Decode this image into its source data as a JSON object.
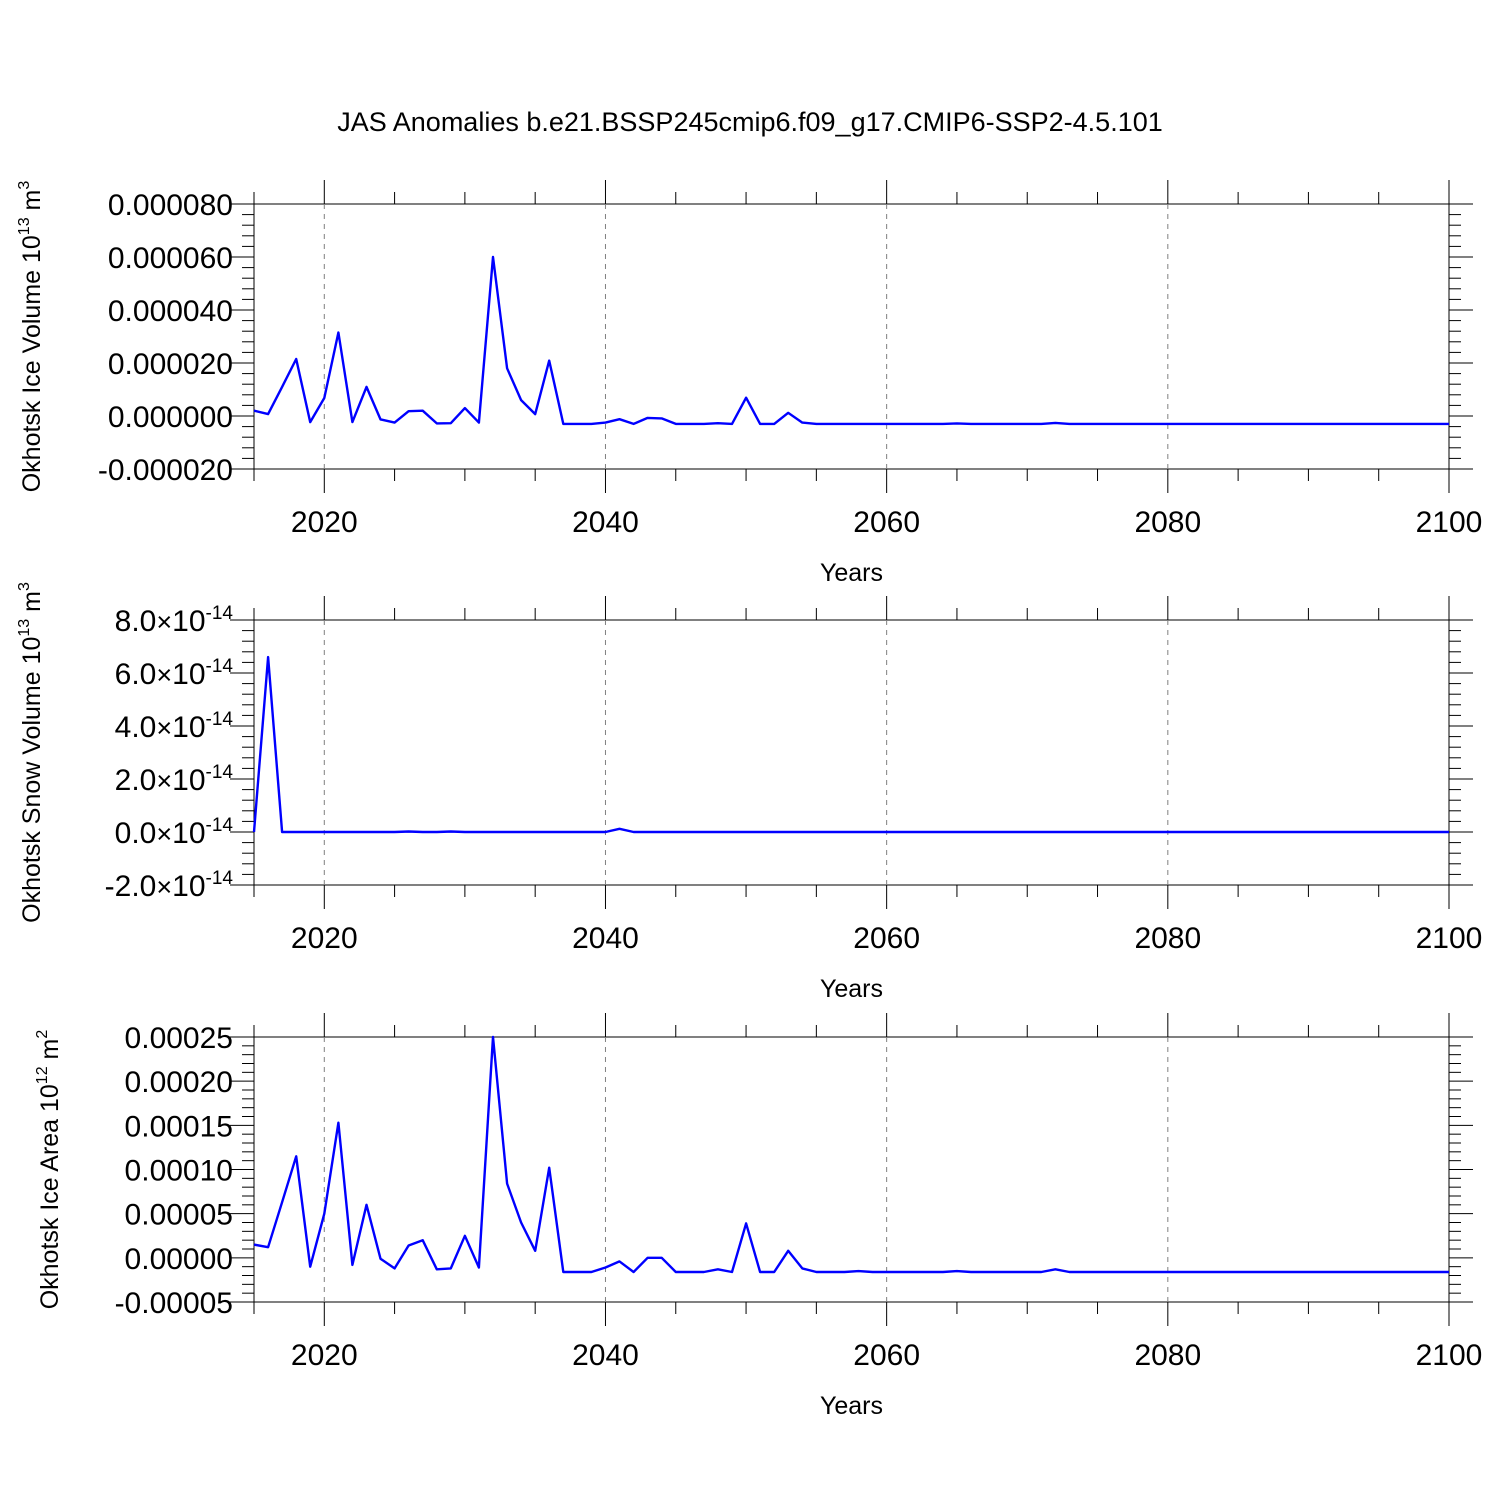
{
  "title": "JAS Anomalies b.e21.BSSP245cmip6.f09_g17.CMIP6-SSP2-4.5.101",
  "line_color": "#0000ff",
  "chart_data": [
    {
      "type": "line",
      "xlabel": "Years",
      "ylabel": "Okhotsk Ice Volume 10",
      "ylabel_exp": "13",
      "ylabel_unit": "m",
      "ylabel_unit_exp": "3",
      "xlim": [
        2015,
        2100
      ],
      "ylim": [
        -2e-05,
        8e-05
      ],
      "x_ticks": [
        "2020",
        "2040",
        "2060",
        "2080",
        "2100"
      ],
      "y_ticks": [
        "-0.000020",
        "0.000000",
        "0.000020",
        "0.000040",
        "0.000060",
        "0.000080"
      ],
      "grid": "dashed vertical at major x ticks",
      "x_start": 2015,
      "values": [
        2e-06,
        7e-07,
        1.1e-05,
        2.15e-05,
        -2.3e-06,
        6.8e-06,
        3.15e-05,
        -2.3e-06,
        1.1e-05,
        -1.3e-06,
        -2.5e-06,
        1.8e-06,
        2e-06,
        -2.8e-06,
        -2.7e-06,
        3e-06,
        -2.5e-06,
        6e-05,
        1.8e-05,
        6e-06,
        7e-07,
        2.09e-05,
        -3e-06,
        -3e-06,
        -3e-06,
        -2.5e-06,
        -1.2e-06,
        -3e-06,
        -7e-07,
        -9e-07,
        -3e-06,
        -3e-06,
        -3e-06,
        -2.7e-06,
        -3e-06,
        6.9e-06,
        -3e-06,
        -3e-06,
        1.2e-06,
        -2.5e-06,
        -3e-06,
        -3e-06,
        -3e-06,
        -3e-06,
        -3e-06,
        -3e-06,
        -3e-06,
        -3e-06,
        -3e-06,
        -3e-06,
        -2.8e-06,
        -3e-06,
        -3e-06,
        -3e-06,
        -3e-06,
        -3e-06,
        -3e-06,
        -2.6e-06,
        -3e-06,
        -3e-06,
        -3e-06,
        -3e-06,
        -3e-06,
        -3e-06,
        -3e-06,
        -3e-06,
        -3e-06,
        -3e-06,
        -3e-06,
        -3e-06,
        -3e-06,
        -3e-06,
        -3e-06,
        -3e-06,
        -3e-06,
        -3e-06,
        -3e-06,
        -3e-06,
        -3e-06,
        -3e-06,
        -3e-06,
        -3e-06,
        -3e-06,
        -3e-06,
        -3e-06,
        -3e-06
      ]
    },
    {
      "type": "line",
      "xlabel": "Years",
      "ylabel": "Okhotsk Snow Volume 10",
      "ylabel_exp": "13",
      "ylabel_unit": "m",
      "ylabel_unit_exp": "3",
      "xlim": [
        2015,
        2100
      ],
      "ylim": [
        -2e-14,
        8e-14
      ],
      "x_ticks": [
        "2020",
        "2040",
        "2060",
        "2080",
        "2100"
      ],
      "y_ticks": [
        {
          "mantissa": "-2.0",
          "times": "×",
          "base": "10",
          "exp": "-14"
        },
        {
          "mantissa": "0.0",
          "times": "×",
          "base": "10",
          "exp": "-14"
        },
        {
          "mantissa": "2.0",
          "times": "×",
          "base": "10",
          "exp": "-14"
        },
        {
          "mantissa": "4.0",
          "times": "×",
          "base": "10",
          "exp": "-14"
        },
        {
          "mantissa": "6.0",
          "times": "×",
          "base": "10",
          "exp": "-14"
        },
        {
          "mantissa": "8.0",
          "times": "×",
          "base": "10",
          "exp": "-14"
        }
      ],
      "grid": "dashed vertical at major x ticks",
      "x_start": 2015,
      "values": [
        0,
        6.6e-14,
        0,
        0,
        0,
        0,
        0,
        0,
        0,
        0,
        0,
        2e-16,
        0,
        0,
        2e-16,
        0,
        0,
        0,
        0,
        0,
        0,
        0,
        0,
        0,
        0,
        0,
        1.2e-15,
        0,
        0,
        0,
        0,
        0,
        0,
        0,
        0,
        0,
        0,
        0,
        0,
        0,
        0,
        0,
        0,
        0,
        0,
        0,
        0,
        0,
        0,
        0,
        0,
        0,
        0,
        0,
        0,
        0,
        0,
        0,
        0,
        0,
        0,
        0,
        0,
        0,
        0,
        0,
        0,
        0,
        0,
        0,
        0,
        0,
        0,
        0,
        0,
        0,
        0,
        0,
        0,
        0,
        0,
        0,
        0,
        0,
        0,
        0
      ]
    },
    {
      "type": "line",
      "xlabel": "Years",
      "ylabel": "Okhotsk Ice Area 10",
      "ylabel_exp": "12",
      "ylabel_unit": "m",
      "ylabel_unit_exp": "2",
      "xlim": [
        2015,
        2100
      ],
      "ylim": [
        -5e-05,
        0.00025
      ],
      "x_ticks": [
        "2020",
        "2040",
        "2060",
        "2080",
        "2100"
      ],
      "y_ticks": [
        "-0.00005",
        "0.00000",
        "0.00005",
        "0.00010",
        "0.00015",
        "0.00020",
        "0.00025"
      ],
      "grid": "dashed vertical at major x ticks",
      "x_start": 2015,
      "values": [
        1.5e-05,
        1.2e-05,
        6.3e-05,
        0.000115,
        -1e-05,
        5e-05,
        0.000153,
        -8e-06,
        6e-05,
        -1e-06,
        -1.2e-05,
        1.4e-05,
        2e-05,
        -1.3e-05,
        -1.2e-05,
        2.5e-05,
        -1.1e-05,
        0.00025,
        8.4e-05,
        4e-05,
        8e-06,
        0.000102,
        -1.6e-05,
        -1.6e-05,
        -1.6e-05,
        -1.1e-05,
        -4e-06,
        -1.6e-05,
        0,
        0,
        -1.6e-05,
        -1.6e-05,
        -1.6e-05,
        -1.3e-05,
        -1.6e-05,
        3.9e-05,
        -1.6e-05,
        -1.6e-05,
        8e-06,
        -1.2e-05,
        -1.6e-05,
        -1.6e-05,
        -1.6e-05,
        -1.5e-05,
        -1.6e-05,
        -1.6e-05,
        -1.6e-05,
        -1.6e-05,
        -1.6e-05,
        -1.6e-05,
        -1.5e-05,
        -1.6e-05,
        -1.6e-05,
        -1.6e-05,
        -1.6e-05,
        -1.6e-05,
        -1.6e-05,
        -1.3e-05,
        -1.6e-05,
        -1.6e-05,
        -1.6e-05,
        -1.6e-05,
        -1.6e-05,
        -1.6e-05,
        -1.6e-05,
        -1.6e-05,
        -1.6e-05,
        -1.6e-05,
        -1.6e-05,
        -1.6e-05,
        -1.6e-05,
        -1.6e-05,
        -1.6e-05,
        -1.6e-05,
        -1.6e-05,
        -1.6e-05,
        -1.6e-05,
        -1.6e-05,
        -1.6e-05,
        -1.6e-05,
        -1.6e-05,
        -1.6e-05,
        -1.6e-05,
        -1.6e-05,
        -1.6e-05,
        -1.6e-05
      ]
    }
  ]
}
